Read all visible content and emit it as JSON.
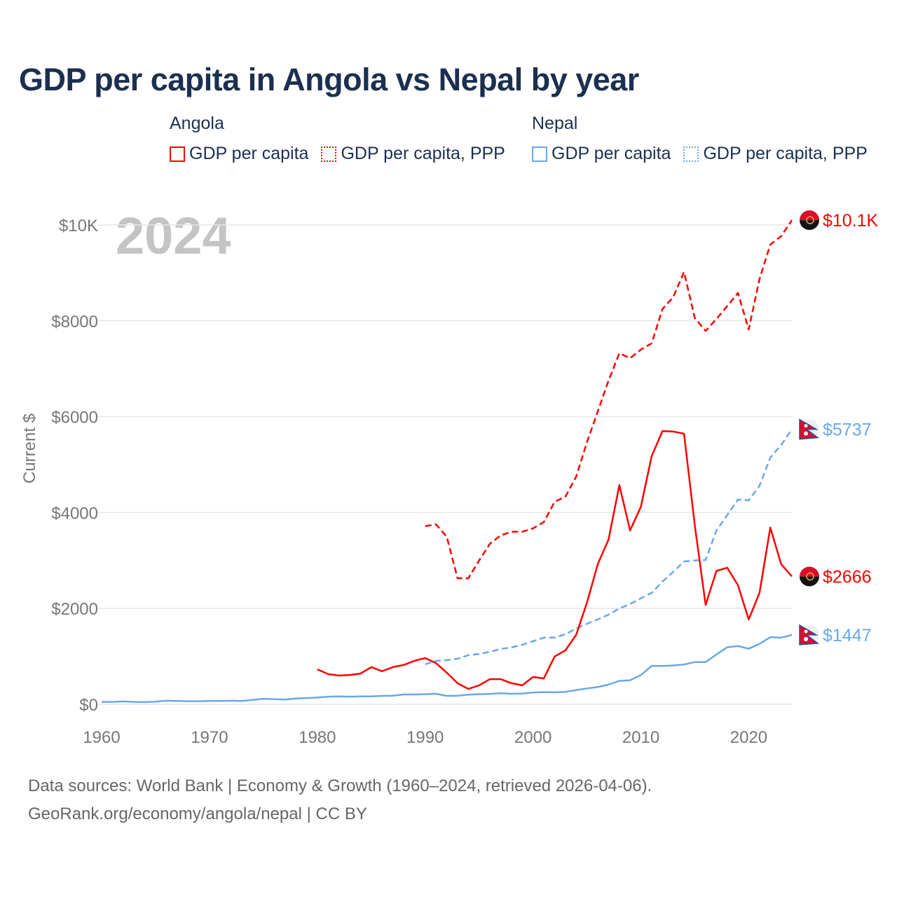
{
  "title": "GDP per capita in Angola vs Nepal by year",
  "year_watermark": "2024",
  "legend": [
    {
      "group": "Angola",
      "items": [
        {
          "label": "GDP per capita",
          "style": "solid"
        },
        {
          "label": "GDP per capita, PPP",
          "style": "dotted"
        }
      ],
      "color": "#ff0000"
    },
    {
      "group": "Nepal",
      "items": [
        {
          "label": "GDP per capita",
          "style": "solid"
        },
        {
          "label": "GDP per capita, PPP",
          "style": "dotted"
        }
      ],
      "color": "#6aa8e8"
    }
  ],
  "footer": {
    "line1": "Data sources: World Bank | Economy & Growth (1960–2024, retrieved 2026-04-06).",
    "line2": "GeoRank.org/economy/angola/nepal | CC BY"
  },
  "chart_data": {
    "type": "line",
    "title": "GDP per capita in Angola vs Nepal by year",
    "xlabel": "",
    "ylabel": "Current $",
    "xlim": [
      1960,
      2024
    ],
    "ylim": [
      0,
      10000
    ],
    "x_ticks": [
      1960,
      1970,
      1980,
      1990,
      2000,
      2010,
      2020
    ],
    "x_tick_labels": [
      "1960",
      "1970",
      "1980",
      "1990",
      "2000",
      "2010",
      "2020"
    ],
    "y_ticks": [
      0,
      2000,
      4000,
      6000,
      8000,
      10000
    ],
    "y_tick_labels": [
      "$0",
      "$2000",
      "$4000",
      "$6000",
      "$8000",
      "$10K"
    ],
    "grid": true,
    "series": [
      {
        "name": "Angola GDP per capita, PPP",
        "color": "#ff0000",
        "dash": true,
        "start": 1990,
        "end_label": "$10.1K",
        "flag": "angola",
        "values": [
          3715,
          3755,
          3495,
          2630,
          2630,
          3000,
          3350,
          3525,
          3600,
          3600,
          3670,
          3800,
          4225,
          4330,
          4750,
          5470,
          6110,
          6755,
          7325,
          7220,
          7400,
          7530,
          8245,
          8495,
          9020,
          8055,
          7790,
          8040,
          8305,
          8580,
          7820,
          8870,
          9590,
          9765,
          10100
        ]
      },
      {
        "name": "Nepal GDP per capita, PPP",
        "color": "#6aa8e8",
        "dash": true,
        "start": 1990,
        "end_label": "$5737",
        "flag": "nepal",
        "values": [
          835,
          905,
          920,
          950,
          1025,
          1050,
          1095,
          1155,
          1185,
          1240,
          1315,
          1390,
          1390,
          1460,
          1580,
          1680,
          1770,
          1870,
          2000,
          2090,
          2210,
          2325,
          2560,
          2765,
          2980,
          3000,
          3010,
          3625,
          3945,
          4270,
          4255,
          4560,
          5145,
          5410,
          5737
        ]
      },
      {
        "name": "Angola GDP per capita",
        "color": "#ff0000",
        "dash": false,
        "start": 1980,
        "end_label": "$2666",
        "flag": "angola",
        "values": [
          730,
          630,
          600,
          610,
          640,
          775,
          690,
          775,
          820,
          905,
          965,
          860,
          660,
          440,
          320,
          395,
          525,
          525,
          440,
          395,
          570,
          540,
          995,
          1125,
          1450,
          2120,
          2925,
          3435,
          4575,
          3625,
          4120,
          5175,
          5700,
          5690,
          5645,
          3730,
          2075,
          2780,
          2850,
          2485,
          1770,
          2325,
          3685,
          2925,
          2666
        ]
      },
      {
        "name": "Nepal GDP per capita",
        "color": "#6aa8e8",
        "dash": false,
        "start": 1960,
        "end_label": "$1447",
        "flag": "nepal",
        "values": [
          50,
          50,
          60,
          50,
          45,
          55,
          75,
          70,
          65,
          65,
          70,
          70,
          75,
          70,
          90,
          115,
          105,
          100,
          120,
          130,
          140,
          160,
          165,
          160,
          165,
          165,
          175,
          180,
          205,
          205,
          210,
          220,
          175,
          180,
          200,
          210,
          215,
          230,
          220,
          225,
          245,
          255,
          250,
          260,
          295,
          330,
          360,
          410,
          490,
          500,
          610,
          800,
          800,
          810,
          830,
          880,
          880,
          1040,
          1190,
          1215,
          1160,
          1260,
          1400,
          1390,
          1447
        ]
      }
    ]
  }
}
